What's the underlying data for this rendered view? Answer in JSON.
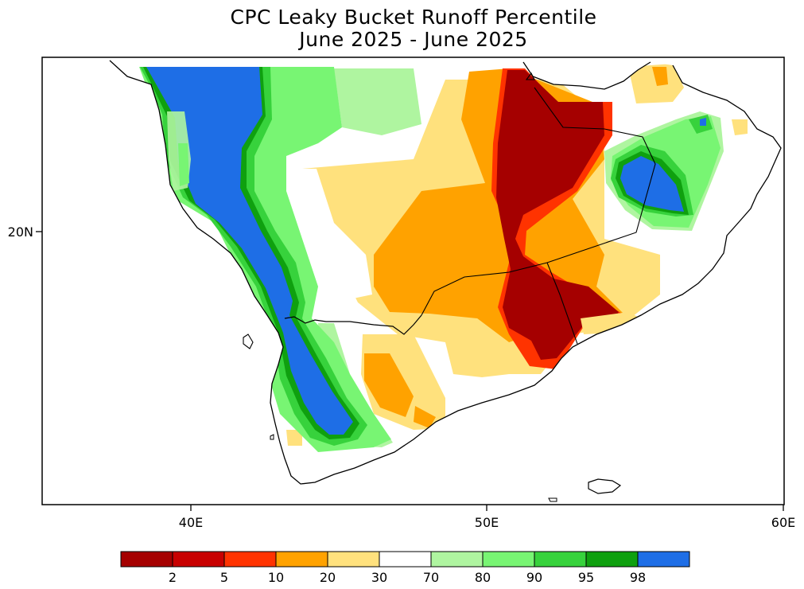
{
  "title": {
    "line1": "CPC Leaky Bucket Runoff Percentile",
    "line2": "June 2025 - June 2025"
  },
  "axes": {
    "x_ticks": [
      "40E",
      "50E",
      "60E"
    ],
    "y_ticks": [
      "20N"
    ]
  },
  "colorbar": {
    "colors": [
      "#a50000",
      "#c80000",
      "#ff3300",
      "#ffa200",
      "#ffe17d",
      "#ffffff",
      "#aff5a0",
      "#78f573",
      "#37d23c",
      "#0fa00f",
      "#1e6ee6"
    ],
    "labels": [
      "2",
      "5",
      "10",
      "20",
      "30",
      "70",
      "80",
      "90",
      "95",
      "98"
    ]
  }
}
